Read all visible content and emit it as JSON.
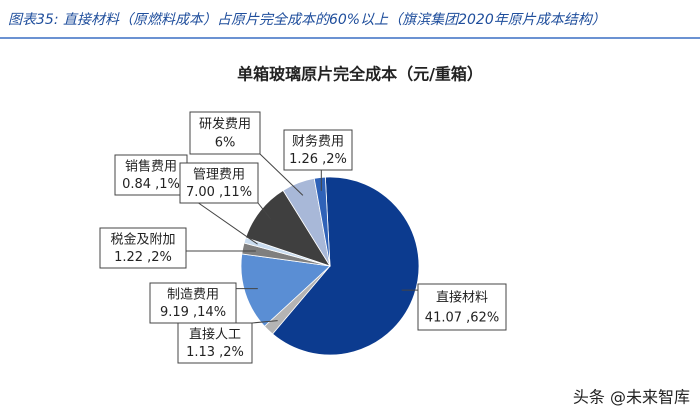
{
  "header": {
    "title": "图表35: 直接材料（原燃料成本）占原片完全成本的60%以上（旗滨集团2020年原片成本结构）"
  },
  "chart_data": {
    "type": "pie",
    "title": "单箱玻璃原片完全成本（元/重箱）",
    "categories": [
      "直接材料",
      "直接人工",
      "制造费用",
      "税金及附加",
      "销售费用",
      "管理费用",
      "研发费用",
      "财务费用"
    ],
    "values": [
      62,
      2,
      14,
      2,
      1,
      11,
      6,
      2
    ],
    "value_labels": [
      "41.07 ,62%",
      "1.13 ,2%",
      "9.19 ,14%",
      "1.22 ,2%",
      "0.84 ,1%",
      "7.00 ,11%",
      "6%",
      "1.26 ,2%"
    ],
    "colors": [
      "#0c3b8f",
      "#b4b4b4",
      "#5a8ed4",
      "#7f7f7f",
      "#c9dcf0",
      "#3f3f3f",
      "#a8b8d8",
      "#2f62b8"
    ]
  },
  "watermark": "头条 @未来智库"
}
